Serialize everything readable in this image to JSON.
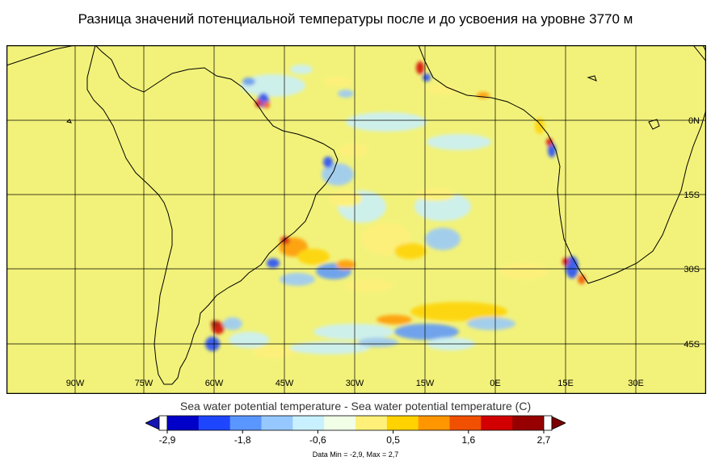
{
  "title": "Разница значений потенциальной температуры после и до усвоения на уровне 3770 м",
  "map": {
    "background_color": "#f2f27a",
    "grid_color": "#000000",
    "lon_labels": [
      "90W",
      "75W",
      "60W",
      "45W",
      "30W",
      "15W",
      "0E",
      "15E",
      "30E"
    ],
    "lat_labels": [
      "0N",
      "15S",
      "30S",
      "45S"
    ]
  },
  "colorbar": {
    "title": "Sea water potential temperature - Sea water potential temperature (C)",
    "tick_labels": [
      "-2,9",
      "-1,8",
      "-0,6",
      "0,5",
      "1,6",
      "2,7"
    ],
    "min_color": "#1414b4",
    "max_color": "#7a0000",
    "colors": [
      "#0000c8",
      "#1e46ff",
      "#5a96ff",
      "#96c8ff",
      "#c8f0ff",
      "#f0ffe6",
      "#fff07a",
      "#ffd200",
      "#ff9600",
      "#f05000",
      "#d20000",
      "#960000"
    ]
  },
  "data_info": "Data Min = -2,9, Max = 2,7"
}
